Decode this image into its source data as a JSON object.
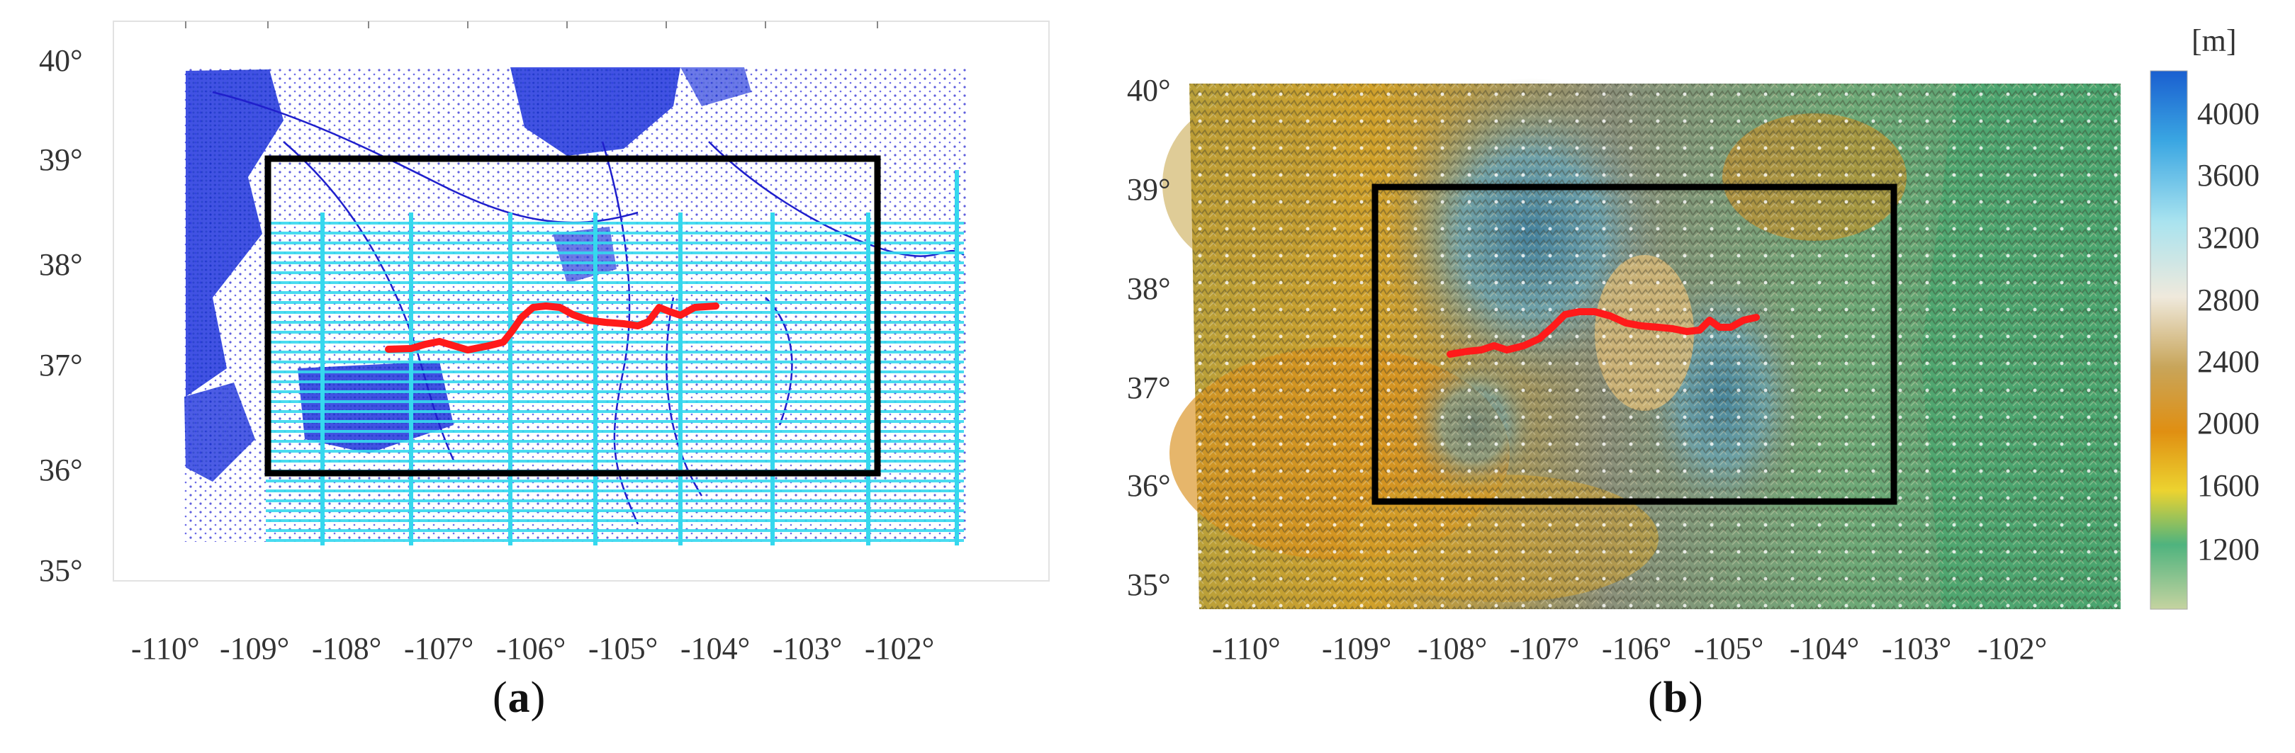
{
  "figure": {
    "panels": [
      {
        "id": "a",
        "caption_letter": "a",
        "lat_labels": [
          "40°",
          "39°",
          "38°",
          "37°",
          "36°",
          "35°"
        ],
        "lon_labels": [
          "-110°",
          "-109°",
          "-108°",
          "-107°",
          "-106°",
          "-105°",
          "-104°",
          "-103°",
          "-102°"
        ],
        "colors": {
          "stations": "#1f1fd6",
          "tracks": "#2fd6e8",
          "box": "#000000",
          "route": "#ff1a1a"
        }
      },
      {
        "id": "b",
        "caption_letter": "b",
        "lat_labels": [
          "40°",
          "39°",
          "38°",
          "37°",
          "36°",
          "35°"
        ],
        "lon_labels": [
          "-110°",
          "-109°",
          "-108°",
          "-107°",
          "-106°",
          "-105°",
          "-104°",
          "-103°",
          "-102°"
        ],
        "colorbar": {
          "unit": "[m]",
          "ticks": [
            "4000",
            "3600",
            "3200",
            "2800",
            "2400",
            "2000",
            "1600",
            "1200"
          ],
          "colors": [
            "#2b6fd1",
            "#5bc7e6",
            "#e9eef0",
            "#c9a66b",
            "#d89a1e",
            "#e8c630",
            "#4fb685",
            "#a4c98a"
          ]
        }
      }
    ]
  }
}
